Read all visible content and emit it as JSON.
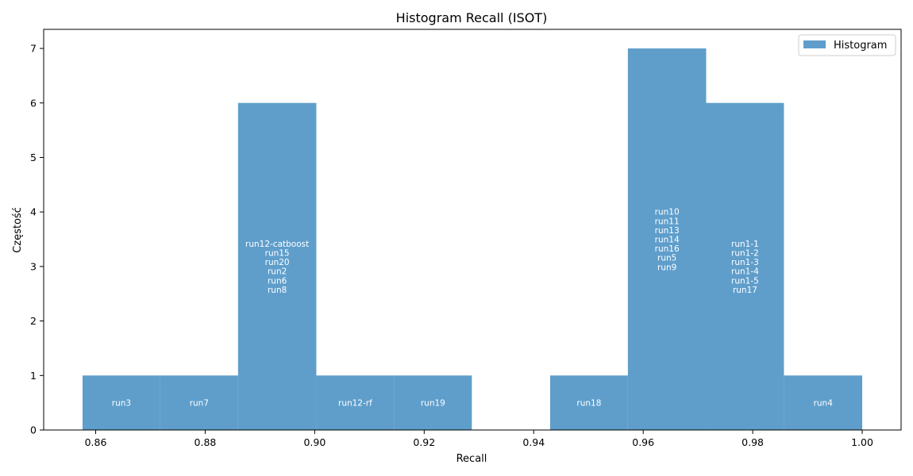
{
  "chart_data": {
    "type": "bar",
    "title": "Histogram Recall (ISOT)",
    "xlabel": "Recall",
    "ylabel": "Częstość",
    "xlim": [
      0.8505,
      1.0071
    ],
    "ylim": [
      0,
      7.35
    ],
    "xticks": [
      0.86,
      0.88,
      0.9,
      0.92,
      0.94,
      0.96,
      0.98,
      1.0
    ],
    "xtick_labels": [
      "0.86",
      "0.88",
      "0.90",
      "0.92",
      "0.94",
      "0.96",
      "0.98",
      "1.00"
    ],
    "yticks": [
      0,
      1,
      2,
      3,
      4,
      5,
      6,
      7
    ],
    "ytick_labels": [
      "0",
      "1",
      "2",
      "3",
      "4",
      "5",
      "6",
      "7"
    ],
    "grid": false,
    "legend_position": "top-right",
    "color": "#5f9ecb",
    "series": [
      {
        "name": "Histogram",
        "bins": [
          {
            "x0": 0.8576,
            "x1": 0.8718,
            "count": 1,
            "labels": [
              "run3"
            ]
          },
          {
            "x0": 0.8718,
            "x1": 0.886,
            "count": 1,
            "labels": [
              "run7"
            ]
          },
          {
            "x0": 0.886,
            "x1": 0.9003,
            "count": 6,
            "labels": [
              "run12-catboost",
              "run15",
              "run20",
              "run2",
              "run6",
              "run8"
            ]
          },
          {
            "x0": 0.9003,
            "x1": 0.9145,
            "count": 1,
            "labels": [
              "run12-rf"
            ]
          },
          {
            "x0": 0.9145,
            "x1": 0.9287,
            "count": 1,
            "labels": [
              "run19"
            ]
          },
          {
            "x0": 0.9287,
            "x1": 0.943,
            "count": 0,
            "labels": []
          },
          {
            "x0": 0.943,
            "x1": 0.9572,
            "count": 1,
            "labels": [
              "run18"
            ]
          },
          {
            "x0": 0.9572,
            "x1": 0.9715,
            "count": 7,
            "labels": [
              "run10",
              "run11",
              "run13",
              "run14",
              "run16",
              "run5",
              "run9"
            ]
          },
          {
            "x0": 0.9715,
            "x1": 0.9857,
            "count": 6,
            "labels": [
              "run1-1",
              "run1-2",
              "run1-3",
              "run1-4",
              "run1-5",
              "run17"
            ]
          },
          {
            "x0": 0.9857,
            "x1": 1.0,
            "count": 1,
            "labels": [
              "run4"
            ]
          }
        ]
      }
    ]
  }
}
